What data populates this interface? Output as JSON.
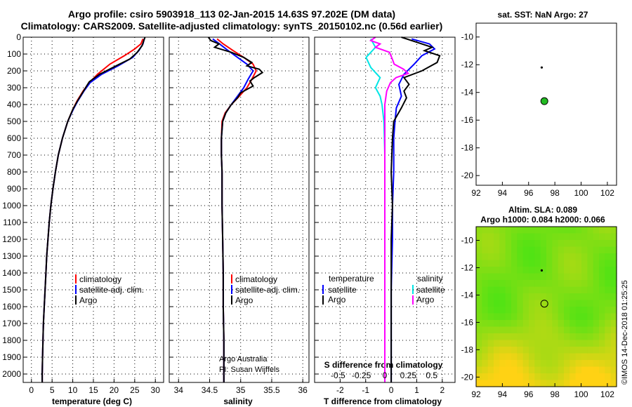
{
  "title": {
    "line1": "Argo profile: csiro 5903918_113 02-Jan-2015 14.63S 97.202E (DM data)",
    "line2": "Climatology: CARS2009. Satellite-adjusted climatology: synTS_20150102.nc (0.56d earlier)"
  },
  "colors": {
    "climatology": "#ff0000",
    "satellite": "#0000ff",
    "argo": "#000000",
    "sal_satellite": "#00e5e5",
    "sal_argo": "#ff00ff",
    "marker_fill": "#22bb22"
  },
  "depth_ticks": [
    "0",
    "100",
    "200",
    "300",
    "400",
    "500",
    "600",
    "700",
    "800",
    "900",
    "1000",
    "1100",
    "1200",
    "1300",
    "1400",
    "1500",
    "1600",
    "1700",
    "1800",
    "1900",
    "2000"
  ],
  "chart_data": [
    {
      "type": "line",
      "id": "temperature",
      "xlabel": "temperature (deg C)",
      "xlim": [
        -2,
        32
      ],
      "ylim": [
        2050,
        0
      ],
      "xticks": [
        0,
        5,
        10,
        15,
        20,
        25,
        30
      ],
      "legend": {
        "climatology": "climatology",
        "satellite": "satellite-adj. clim.",
        "argo": "Argo"
      },
      "series": [
        {
          "name": "climatology",
          "color": "#ff0000",
          "points": [
            [
              27.0,
              10
            ],
            [
              26.5,
              40
            ],
            [
              25.0,
              70
            ],
            [
              22.5,
              110
            ],
            [
              19.0,
              160
            ],
            [
              16.0,
              220
            ],
            [
              14.0,
              270
            ],
            [
              12.5,
              320
            ],
            [
              11.0,
              380
            ],
            [
              10.0,
              430
            ],
            [
              8.8,
              500
            ],
            [
              7.5,
              600
            ],
            [
              6.5,
              700
            ],
            [
              5.8,
              800
            ],
            [
              5.2,
              900
            ],
            [
              4.7,
              1000
            ],
            [
              4.3,
              1100
            ],
            [
              4.0,
              1200
            ],
            [
              3.7,
              1300
            ],
            [
              3.5,
              1400
            ],
            [
              3.3,
              1500
            ],
            [
              3.1,
              1600
            ],
            [
              2.9,
              1700
            ],
            [
              2.8,
              1800
            ],
            [
              2.7,
              1900
            ],
            [
              2.6,
              2000
            ],
            [
              2.6,
              2050
            ]
          ]
        },
        {
          "name": "satellite",
          "color": "#0000ff",
          "points": [
            [
              27.3,
              10
            ],
            [
              27.0,
              40
            ],
            [
              26.0,
              80
            ],
            [
              24.5,
              120
            ],
            [
              21.0,
              170
            ],
            [
              17.0,
              220
            ],
            [
              14.2,
              270
            ],
            [
              12.7,
              320
            ],
            [
              11.2,
              380
            ],
            [
              10.1,
              430
            ],
            [
              8.8,
              500
            ],
            [
              7.5,
              600
            ],
            [
              6.5,
              700
            ],
            [
              5.8,
              800
            ],
            [
              5.2,
              900
            ],
            [
              4.7,
              1000
            ],
            [
              4.3,
              1100
            ],
            [
              4.0,
              1200
            ],
            [
              3.7,
              1300
            ],
            [
              3.5,
              1400
            ],
            [
              3.3,
              1500
            ],
            [
              3.1,
              1600
            ],
            [
              2.9,
              1700
            ],
            [
              2.8,
              1800
            ],
            [
              2.7,
              1900
            ],
            [
              2.6,
              2000
            ],
            [
              2.6,
              2050
            ]
          ]
        },
        {
          "name": "argo",
          "color": "#000000",
          "points": [
            [
              27.5,
              0
            ],
            [
              27.2,
              20
            ],
            [
              26.8,
              50
            ],
            [
              25.6,
              90
            ],
            [
              23.8,
              130
            ],
            [
              20.5,
              170
            ],
            [
              16.5,
              220
            ],
            [
              14.0,
              265
            ],
            [
              12.6,
              320
            ],
            [
              11.1,
              380
            ],
            [
              10.0,
              430
            ],
            [
              8.8,
              500
            ],
            [
              7.5,
              600
            ],
            [
              6.5,
              700
            ],
            [
              5.8,
              800
            ],
            [
              5.2,
              900
            ],
            [
              4.7,
              1000
            ],
            [
              4.3,
              1100
            ],
            [
              4.0,
              1200
            ],
            [
              3.7,
              1300
            ],
            [
              3.5,
              1400
            ],
            [
              3.3,
              1500
            ],
            [
              3.1,
              1600
            ],
            [
              2.9,
              1700
            ],
            [
              2.8,
              1800
            ],
            [
              2.7,
              1900
            ],
            [
              2.6,
              2000
            ],
            [
              2.6,
              2050
            ]
          ]
        }
      ]
    },
    {
      "type": "line",
      "id": "salinity",
      "xlabel": "salinity",
      "xlim": [
        33.85,
        36.1
      ],
      "ylim": [
        2050,
        0
      ],
      "xticks": [
        34,
        34.5,
        35,
        35.5,
        36
      ],
      "xticklabels": [
        "34",
        "34.5",
        "35",
        "35.5",
        "36"
      ],
      "legend": {
        "climatology": "climatology",
        "satellite": "satellite-adj. clim.",
        "argo": "Argo"
      },
      "credit1": "Argo Australia",
      "credit2": "PI: Susan Wijffels",
      "series": [
        {
          "name": "climatology",
          "color": "#ff0000",
          "points": [
            [
              34.62,
              10
            ],
            [
              34.72,
              40
            ],
            [
              34.88,
              80
            ],
            [
              35.05,
              120
            ],
            [
              35.2,
              160
            ],
            [
              35.25,
              200
            ],
            [
              35.18,
              250
            ],
            [
              35.1,
              300
            ],
            [
              34.98,
              350
            ],
            [
              34.85,
              400
            ],
            [
              34.75,
              450
            ],
            [
              34.7,
              500
            ],
            [
              34.69,
              600
            ],
            [
              34.69,
              700
            ],
            [
              34.7,
              800
            ],
            [
              34.7,
              1000
            ],
            [
              34.71,
              1200
            ],
            [
              34.72,
              1400
            ],
            [
              34.72,
              1600
            ],
            [
              34.73,
              1800
            ],
            [
              34.73,
              2050
            ]
          ]
        },
        {
          "name": "satellite",
          "color": "#0000ff",
          "points": [
            [
              34.55,
              10
            ],
            [
              34.66,
              40
            ],
            [
              34.8,
              80
            ],
            [
              34.95,
              120
            ],
            [
              35.1,
              160
            ],
            [
              35.2,
              200
            ],
            [
              35.12,
              250
            ],
            [
              35.05,
              300
            ],
            [
              34.95,
              350
            ],
            [
              34.85,
              400
            ],
            [
              34.76,
              450
            ],
            [
              34.71,
              500
            ],
            [
              34.69,
              600
            ],
            [
              34.69,
              700
            ],
            [
              34.7,
              800
            ],
            [
              34.7,
              1000
            ],
            [
              34.71,
              1200
            ],
            [
              34.72,
              1400
            ],
            [
              34.72,
              1600
            ],
            [
              34.73,
              1800
            ],
            [
              34.73,
              2050
            ]
          ]
        },
        {
          "name": "argo",
          "color": "#000000",
          "points": [
            [
              34.48,
              0
            ],
            [
              34.52,
              20
            ],
            [
              34.65,
              40
            ],
            [
              34.58,
              60
            ],
            [
              34.85,
              90
            ],
            [
              35.05,
              120
            ],
            [
              35.18,
              150
            ],
            [
              35.1,
              170
            ],
            [
              35.3,
              190
            ],
            [
              35.35,
              210
            ],
            [
              35.22,
              240
            ],
            [
              35.15,
              260
            ],
            [
              35.2,
              290
            ],
            [
              35.0,
              330
            ],
            [
              34.95,
              360
            ],
            [
              34.85,
              400
            ],
            [
              34.76,
              450
            ],
            [
              34.71,
              500
            ],
            [
              34.69,
              600
            ],
            [
              34.69,
              700
            ],
            [
              34.7,
              800
            ],
            [
              34.7,
              1000
            ],
            [
              34.71,
              1200
            ],
            [
              34.72,
              1400
            ],
            [
              34.72,
              1600
            ],
            [
              34.73,
              1800
            ],
            [
              34.73,
              2050
            ]
          ]
        }
      ]
    },
    {
      "type": "line",
      "id": "differences",
      "xlabel": "T difference from climatology",
      "xlim": [
        -3,
        2.5
      ],
      "ylim": [
        2050,
        0
      ],
      "xticks": [
        -2,
        -1,
        0,
        1,
        2
      ],
      "s_axis_label": "S difference from climatology",
      "s_ticks": [
        "-0.5",
        "-0.25",
        "0",
        "0.25",
        "0.5"
      ],
      "legend": {
        "temperature": "temperature",
        "salinity": "salinity",
        "t_satellite": "satellite",
        "t_argo": "Argo",
        "s_satellite": "satellite",
        "s_argo": "Argo"
      },
      "series": [
        {
          "name": "t_satellite",
          "color": "#0000ff",
          "points": [
            [
              0.8,
              10
            ],
            [
              1.5,
              40
            ],
            [
              1.7,
              70
            ],
            [
              1.2,
              110
            ],
            [
              0.9,
              160
            ],
            [
              0.5,
              220
            ],
            [
              0.3,
              280
            ],
            [
              0.4,
              350
            ],
            [
              0.2,
              420
            ],
            [
              0.15,
              500
            ],
            [
              0.1,
              600
            ],
            [
              0.1,
              800
            ],
            [
              0.05,
              1000
            ],
            [
              0.05,
              1200
            ],
            [
              0.0,
              1500
            ],
            [
              0.0,
              1800
            ],
            [
              0.0,
              2050
            ]
          ]
        },
        {
          "name": "t_argo",
          "color": "#000000",
          "points": [
            [
              0.4,
              0
            ],
            [
              1.0,
              30
            ],
            [
              1.6,
              60
            ],
            [
              1.3,
              80
            ],
            [
              1.9,
              110
            ],
            [
              1.8,
              150
            ],
            [
              1.2,
              200
            ],
            [
              0.5,
              240
            ],
            [
              0.7,
              280
            ],
            [
              0.5,
              320
            ],
            [
              0.6,
              360
            ],
            [
              0.4,
              420
            ],
            [
              0.1,
              500
            ],
            [
              0.05,
              600
            ],
            [
              0.0,
              800
            ],
            [
              0.05,
              1000
            ],
            [
              0.0,
              1200
            ],
            [
              0.0,
              1500
            ],
            [
              0.0,
              1800
            ],
            [
              0.0,
              2050
            ]
          ]
        },
        {
          "name": "s_satellite",
          "color": "#00e5e5",
          "points": [
            [
              -0.15,
              10
            ],
            [
              -0.1,
              60
            ],
            [
              -0.2,
              120
            ],
            [
              -0.15,
              180
            ],
            [
              -0.05,
              240
            ],
            [
              -0.1,
              300
            ],
            [
              -0.05,
              350
            ],
            [
              -0.03,
              400
            ],
            [
              -0.01,
              500
            ],
            [
              0.0,
              700
            ],
            [
              0.0,
              1000
            ],
            [
              0.0,
              1400
            ],
            [
              0.0,
              1800
            ],
            [
              0.0,
              2050
            ]
          ]
        },
        {
          "name": "s_argo",
          "color": "#ff00ff",
          "points": [
            [
              -0.1,
              0
            ],
            [
              -0.15,
              20
            ],
            [
              -0.05,
              40
            ],
            [
              -0.1,
              60
            ],
            [
              0.05,
              90
            ],
            [
              0.08,
              130
            ],
            [
              0.1,
              160
            ],
            [
              0.2,
              190
            ],
            [
              0.25,
              215
            ],
            [
              0.12,
              240
            ],
            [
              0.06,
              270
            ],
            [
              0.02,
              320
            ],
            [
              0.0,
              400
            ],
            [
              0.0,
              600
            ],
            [
              0.0,
              900
            ],
            [
              0.0,
              1200
            ],
            [
              0.0,
              1500
            ],
            [
              0.0,
              1800
            ],
            [
              0.0,
              2050
            ]
          ]
        }
      ]
    },
    {
      "type": "scatter",
      "id": "sst_map",
      "title": "sat. SST: NaN Argo: 27",
      "xlim": [
        92,
        102.7
      ],
      "ylim": [
        -20.7,
        -9
      ],
      "xticks": [
        92,
        94,
        96,
        98,
        100,
        102
      ],
      "yticks": [
        -10,
        -12,
        -14,
        -16,
        -18,
        -20
      ],
      "points": [
        {
          "label": "Argo",
          "lon": 97.2,
          "lat": -14.63
        },
        {
          "label": "previous",
          "lon": 97.0,
          "lat": -12.2
        }
      ]
    },
    {
      "type": "heatmap",
      "id": "sla_map",
      "title1": "Altim. SLA: 0.089",
      "title2": "Argo h1000: 0.084 h2000: 0.066",
      "credit": "©IMOS 14-Dec-2018 01:25:25",
      "xlim": [
        92,
        102.7
      ],
      "ylim": [
        -20.7,
        -9
      ],
      "xticks": [
        92,
        94,
        96,
        98,
        100,
        102
      ],
      "yticks": [
        -10,
        -12,
        -14,
        -16,
        -18,
        -20
      ],
      "points": [
        {
          "label": "Argo",
          "lon": 97.2,
          "lat": -14.63
        },
        {
          "label": "previous",
          "lon": 97.0,
          "lat": -12.2
        }
      ]
    }
  ]
}
